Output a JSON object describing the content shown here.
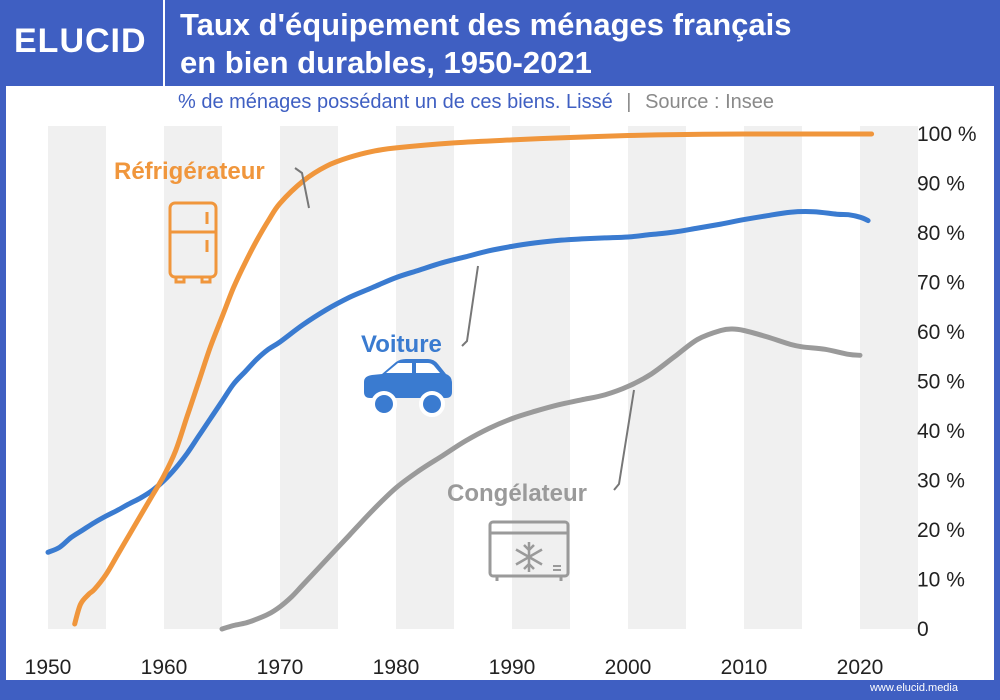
{
  "brand": {
    "logo": "ELUCID",
    "footer": "www.elucid.media"
  },
  "header": {
    "title_line1": "Taux d'équipement des ménages français",
    "title_line2": "en bien durables, 1950-2021"
  },
  "subtitle": {
    "text": "% de ménages possédant un de ces biens. Lissé",
    "separator": "|",
    "source": "Source : Insee"
  },
  "colors": {
    "accent": "#3f5fc2",
    "refrigerateur": "#f0963c",
    "voiture": "#3a7bd0",
    "congelateur": "#9a9a9a",
    "band": "#f0f0f0"
  },
  "icons": [
    "fridge-icon",
    "car-icon",
    "freezer-icon"
  ],
  "chart_data": {
    "type": "line",
    "xlim": [
      1950,
      2021
    ],
    "ylim": [
      0,
      100
    ],
    "x_ticks": [
      1950,
      1960,
      1970,
      1980,
      1990,
      2000,
      2010,
      2020
    ],
    "x_tick_labels": [
      "1950",
      "1960",
      "1970",
      "1980",
      "1990",
      "2000",
      "2010",
      "2020"
    ],
    "y_ticks": [
      0,
      10,
      20,
      30,
      40,
      50,
      60,
      70,
      80,
      90,
      100
    ],
    "y_tick_labels": [
      "0",
      "10 %",
      "20 %",
      "30 %",
      "40 %",
      "50 %",
      "60 %",
      "70 %",
      "80 %",
      "90 %",
      "100 %"
    ],
    "series": [
      {
        "name": "Réfrigérateur",
        "key": "refrigerateur",
        "points": [
          [
            1952.3,
            1
          ],
          [
            1952.8,
            5
          ],
          [
            1953.5,
            7
          ],
          [
            1954,
            8
          ],
          [
            1955,
            11
          ],
          [
            1956,
            15
          ],
          [
            1957,
            19
          ],
          [
            1958,
            23
          ],
          [
            1959,
            27
          ],
          [
            1960,
            31
          ],
          [
            1961,
            36
          ],
          [
            1962,
            43
          ],
          [
            1963,
            50
          ],
          [
            1964,
            57
          ],
          [
            1965,
            63
          ],
          [
            1966,
            69
          ],
          [
            1967,
            74
          ],
          [
            1968,
            78.5
          ],
          [
            1969,
            82.5
          ],
          [
            1970,
            86
          ],
          [
            1972,
            90.5
          ],
          [
            1974,
            93.5
          ],
          [
            1976,
            95.3
          ],
          [
            1978,
            96.5
          ],
          [
            1980,
            97.2
          ],
          [
            1985,
            98.2
          ],
          [
            1990,
            98.8
          ],
          [
            1995,
            99.3
          ],
          [
            2000,
            99.7
          ],
          [
            2005,
            99.9
          ],
          [
            2010,
            100
          ],
          [
            2021,
            100
          ]
        ]
      },
      {
        "name": "Voiture",
        "key": "voiture",
        "points": [
          [
            1950,
            15.5
          ],
          [
            1951,
            16.5
          ],
          [
            1952,
            18.5
          ],
          [
            1953,
            20
          ],
          [
            1954,
            21.5
          ],
          [
            1955,
            22.8
          ],
          [
            1956,
            24
          ],
          [
            1957,
            25.3
          ],
          [
            1958,
            26.5
          ],
          [
            1959,
            28
          ],
          [
            1960,
            30
          ],
          [
            1961,
            32.5
          ],
          [
            1962,
            35.5
          ],
          [
            1963,
            39
          ],
          [
            1964,
            42.5
          ],
          [
            1965,
            46
          ],
          [
            1966,
            49.5
          ],
          [
            1967,
            52
          ],
          [
            1968,
            54.5
          ],
          [
            1969,
            56.5
          ],
          [
            1970,
            58
          ],
          [
            1972,
            61.5
          ],
          [
            1974,
            64.5
          ],
          [
            1976,
            67
          ],
          [
            1978,
            69
          ],
          [
            1980,
            71
          ],
          [
            1982,
            72.5
          ],
          [
            1984,
            74
          ],
          [
            1986,
            75.2
          ],
          [
            1988,
            76.4
          ],
          [
            1990,
            77.3
          ],
          [
            1992,
            78
          ],
          [
            1994,
            78.5
          ],
          [
            1996,
            78.8
          ],
          [
            1998,
            79
          ],
          [
            2000,
            79.2
          ],
          [
            2002,
            79.7
          ],
          [
            2004,
            80.2
          ],
          [
            2006,
            81
          ],
          [
            2008,
            81.8
          ],
          [
            2010,
            82.7
          ],
          [
            2012,
            83.5
          ],
          [
            2014,
            84.2
          ],
          [
            2016,
            84.3
          ],
          [
            2018,
            83.8
          ],
          [
            2019,
            83.7
          ],
          [
            2020,
            83.2
          ],
          [
            2020.7,
            82.5
          ]
        ]
      },
      {
        "name": "Congélateur",
        "key": "congelateur",
        "points": [
          [
            1965,
            0
          ],
          [
            1966,
            0.7
          ],
          [
            1967,
            1.2
          ],
          [
            1968,
            2
          ],
          [
            1969,
            3
          ],
          [
            1970,
            4.5
          ],
          [
            1971,
            6.5
          ],
          [
            1972,
            9
          ],
          [
            1974,
            14
          ],
          [
            1976,
            19
          ],
          [
            1978,
            24
          ],
          [
            1980,
            28.5
          ],
          [
            1982,
            32
          ],
          [
            1984,
            35
          ],
          [
            1986,
            38
          ],
          [
            1988,
            40.5
          ],
          [
            1990,
            42.5
          ],
          [
            1992,
            44
          ],
          [
            1994,
            45.3
          ],
          [
            1996,
            46.3
          ],
          [
            1998,
            47.3
          ],
          [
            2000,
            49
          ],
          [
            2002,
            51.5
          ],
          [
            2004,
            55
          ],
          [
            2006,
            58.5
          ],
          [
            2008,
            60.3
          ],
          [
            2009,
            60.6
          ],
          [
            2010,
            60.3
          ],
          [
            2012,
            59
          ],
          [
            2014,
            57.5
          ],
          [
            2015,
            57
          ],
          [
            2017,
            56.5
          ],
          [
            2019,
            55.5
          ],
          [
            2020,
            55.3
          ]
        ]
      }
    ],
    "labels": [
      {
        "key": "refrigerateur",
        "text": "Réfrigérateur"
      },
      {
        "key": "voiture",
        "text": "Voiture"
      },
      {
        "key": "congelateur",
        "text": "Congélateur"
      }
    ]
  }
}
